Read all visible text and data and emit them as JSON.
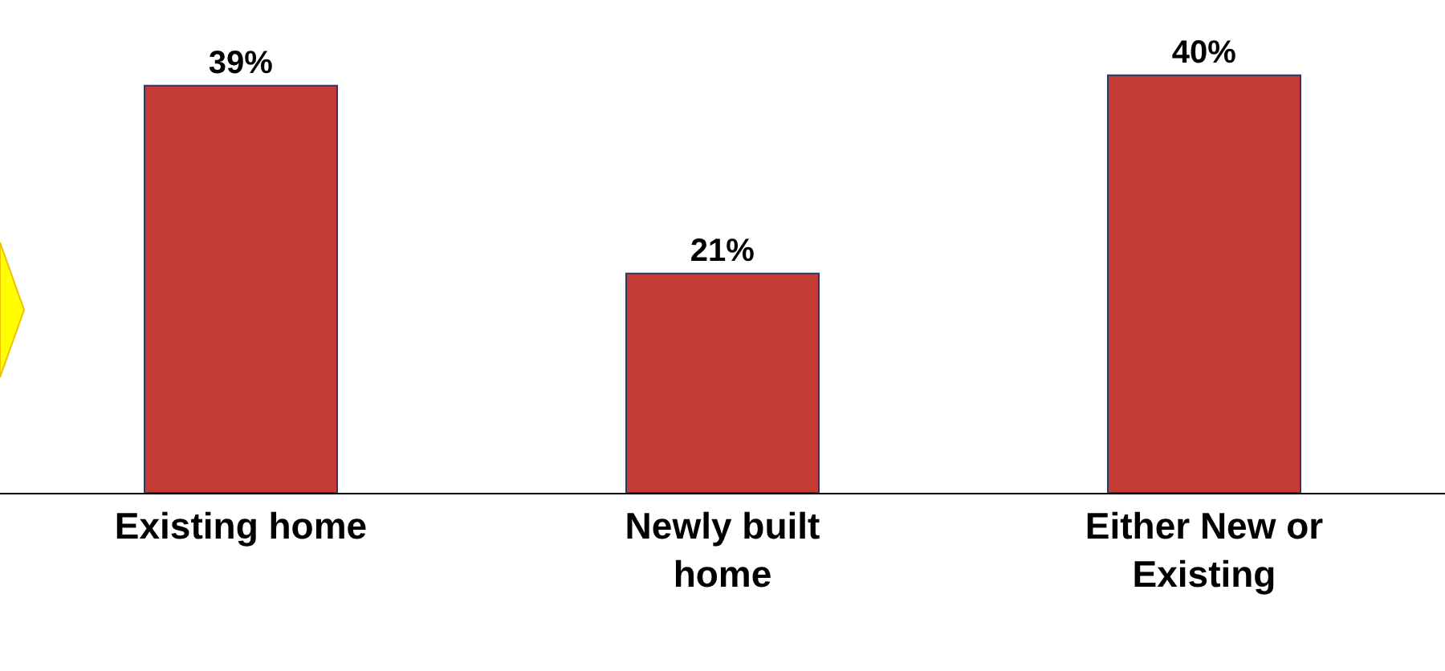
{
  "chart_data": {
    "type": "bar",
    "categories": [
      "Existing home",
      "Newly built home",
      "Either New or Existing"
    ],
    "values": [
      39,
      21,
      40
    ],
    "value_labels": [
      "39%",
      "21%",
      "40%"
    ],
    "color": "#c33b33"
  }
}
